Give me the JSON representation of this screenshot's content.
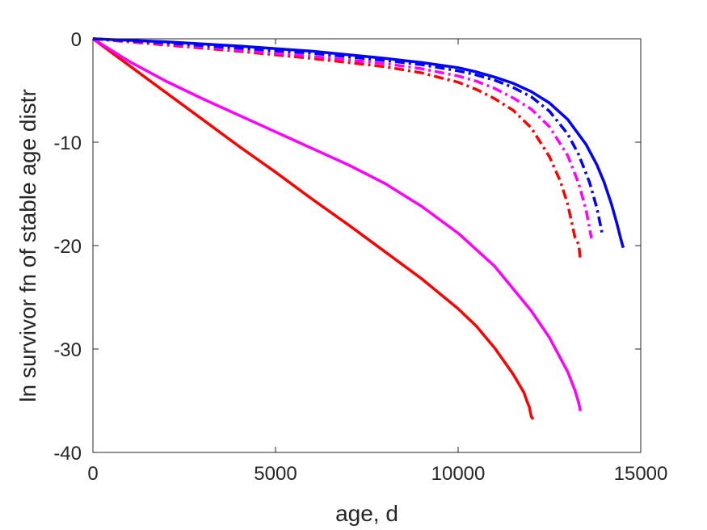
{
  "chart_data": {
    "type": "line",
    "title": "",
    "xlabel": "age, d",
    "ylabel": "ln survivor fn of stable age distr",
    "xlim": [
      0,
      15000
    ],
    "ylim": [
      -40,
      0
    ],
    "xticks": [
      0,
      5000,
      10000,
      15000
    ],
    "xtick_labels": [
      "0",
      "5000",
      "10000",
      "15000"
    ],
    "yticks": [
      0,
      -10,
      -20,
      -30,
      -40
    ],
    "ytick_labels": [
      "0",
      "-10",
      "-20",
      "-30",
      "-40"
    ],
    "grid": false,
    "legend": "none",
    "series": [
      {
        "color": "#ff0000",
        "style": "solid",
        "x": [
          0,
          1000,
          2000,
          3000,
          4000,
          5000,
          6000,
          7000,
          8000,
          9000,
          10000,
          10500,
          11000,
          11500,
          11800,
          11900,
          11950,
          12000,
          12050
        ],
        "y": [
          0,
          -2.6,
          -5.2,
          -7.8,
          -10.4,
          -12.9,
          -15.5,
          -18.0,
          -20.6,
          -23.2,
          -26.1,
          -27.8,
          -29.9,
          -32.4,
          -34.2,
          -35.2,
          -35.6,
          -36.5,
          -36.8
        ]
      },
      {
        "color": "#ff00ff",
        "style": "solid",
        "x": [
          0,
          1000,
          2000,
          3000,
          4000,
          5000,
          6000,
          7000,
          8000,
          9000,
          10000,
          11000,
          12000,
          12500,
          13000,
          13200,
          13300,
          13350
        ],
        "y": [
          0,
          -2.2,
          -4.1,
          -5.8,
          -7.4,
          -9.0,
          -10.6,
          -12.2,
          -14.0,
          -16.2,
          -18.8,
          -22.0,
          -26.3,
          -28.9,
          -32.2,
          -34.0,
          -35.2,
          -36.0
        ]
      },
      {
        "color": "#ff0000",
        "style": "dashdot",
        "x": [
          0,
          2000,
          4000,
          6000,
          8000,
          9000,
          10000,
          10500,
          11000,
          11500,
          12000,
          12500,
          12800,
          13000,
          13200,
          13300,
          13350
        ],
        "y": [
          0,
          -0.6,
          -1.2,
          -1.9,
          -2.7,
          -3.3,
          -4.2,
          -4.9,
          -5.8,
          -6.9,
          -8.6,
          -11.4,
          -13.8,
          -16.0,
          -19.2,
          -19.9,
          -21.4
        ]
      },
      {
        "color": "#ff00ff",
        "style": "dashdot",
        "x": [
          0,
          2000,
          4000,
          6000,
          8000,
          9000,
          10000,
          10500,
          11000,
          11500,
          12000,
          12500,
          13000,
          13300,
          13500,
          13650
        ],
        "y": [
          0,
          -0.5,
          -1.1,
          -1.7,
          -2.4,
          -2.9,
          -3.6,
          -4.1,
          -4.8,
          -5.7,
          -6.8,
          -8.5,
          -11.3,
          -14.0,
          -16.5,
          -19.3
        ]
      },
      {
        "color": "#0000ff",
        "style": "dashdot",
        "x": [
          0,
          2000,
          4000,
          6000,
          8000,
          9000,
          10000,
          10500,
          11000,
          11500,
          12000,
          12500,
          13000,
          13300,
          13600,
          13800,
          13950
        ],
        "y": [
          0,
          -0.4,
          -0.9,
          -1.4,
          -2.1,
          -2.5,
          -3.1,
          -3.5,
          -4.0,
          -4.7,
          -5.6,
          -7.0,
          -9.2,
          -11.2,
          -13.9,
          -16.4,
          -18.9
        ]
      },
      {
        "color": "#0000ff",
        "style": "solid",
        "x": [
          0,
          2000,
          4000,
          6000,
          8000,
          9000,
          10000,
          10500,
          11000,
          11500,
          12000,
          12500,
          13000,
          13500,
          13800,
          14000,
          14200,
          14350,
          14450,
          14520
        ],
        "y": [
          0,
          -0.3,
          -0.7,
          -1.2,
          -1.9,
          -2.3,
          -2.8,
          -3.2,
          -3.7,
          -4.3,
          -5.1,
          -6.2,
          -7.8,
          -10.2,
          -12.2,
          -13.9,
          -16.0,
          -17.9,
          -19.3,
          -20.2
        ]
      }
    ]
  }
}
